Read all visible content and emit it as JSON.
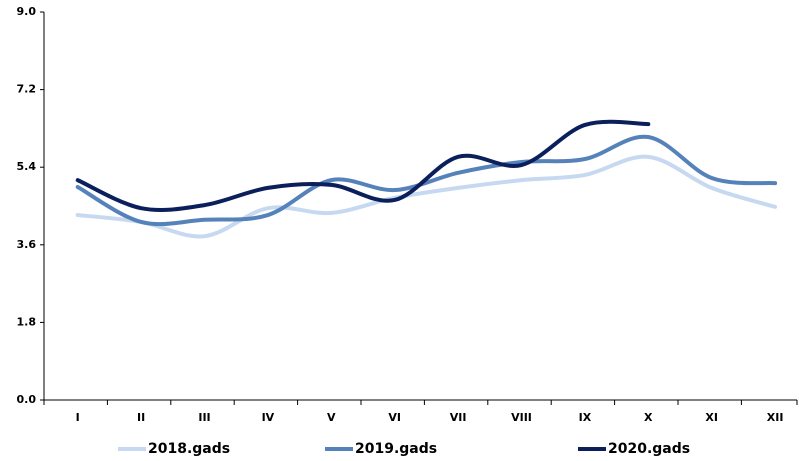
{
  "chart_data": {
    "type": "line",
    "categories": [
      "I",
      "II",
      "III",
      "IV",
      "V",
      "VI",
      "VII",
      "VIII",
      "IX",
      "X",
      "XI",
      "XII"
    ],
    "series": [
      {
        "name": "2018.gads",
        "color": "#c6d9f0",
        "values": [
          4.29,
          4.13,
          3.8,
          4.45,
          4.34,
          4.69,
          4.92,
          5.1,
          5.22,
          5.64,
          4.92,
          4.48
        ]
      },
      {
        "name": "2019.gads",
        "color": "#5682ba",
        "values": [
          4.94,
          4.13,
          4.18,
          4.29,
          5.1,
          4.87,
          5.27,
          5.52,
          5.59,
          6.1,
          5.15,
          5.03
        ]
      },
      {
        "name": "2020.gads",
        "color": "#0b1f5c",
        "values": [
          5.1,
          4.45,
          4.52,
          4.92,
          4.99,
          4.64,
          5.64,
          5.45,
          6.38,
          6.4,
          null,
          null
        ]
      }
    ],
    "ylim": [
      0,
      9
    ],
    "yticks": [
      {
        "value": 0,
        "label": "0.0"
      },
      1.8,
      3.6,
      5.4,
      7.2,
      {
        "value": 9,
        "label": "9.0"
      }
    ],
    "legend": "bottom"
  }
}
